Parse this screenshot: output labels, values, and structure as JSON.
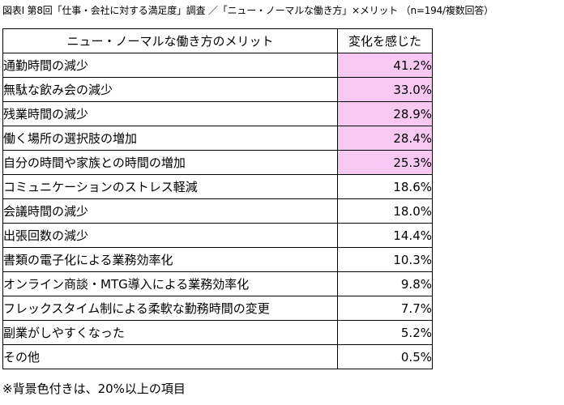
{
  "title": "図表Ⅰ 第8回「仕事・会社に対する満足度」調査 ／「ニュー・ノーマルな働き方」×メリット （n=194/複数回答）",
  "note": "※背景色付きは、20%以上の項目",
  "colors": {
    "highlight": "#f7c9f2",
    "border": "#000000"
  },
  "chart_data": {
    "type": "table",
    "columns": [
      "ニュー・ノーマルな働き方のメリット",
      "変化を感じた"
    ],
    "highlight_threshold_pct": 20,
    "rows": [
      {
        "label": "通勤時間の減少",
        "value": 41.2,
        "display": "41.2%",
        "highlight": true
      },
      {
        "label": "無駄な飲み会の減少",
        "value": 33.0,
        "display": "33.0%",
        "highlight": true
      },
      {
        "label": "残業時間の減少",
        "value": 28.9,
        "display": "28.9%",
        "highlight": true
      },
      {
        "label": "働く場所の選択肢の増加",
        "value": 28.4,
        "display": "28.4%",
        "highlight": true
      },
      {
        "label": "自分の時間や家族との時間の増加",
        "value": 25.3,
        "display": "25.3%",
        "highlight": true
      },
      {
        "label": "コミュニケーションのストレス軽減",
        "value": 18.6,
        "display": "18.6%",
        "highlight": false
      },
      {
        "label": "会議時間の減少",
        "value": 18.0,
        "display": "18.0%",
        "highlight": false
      },
      {
        "label": "出張回数の減少",
        "value": 14.4,
        "display": "14.4%",
        "highlight": false
      },
      {
        "label": "書類の電子化による業務効率化",
        "value": 10.3,
        "display": "10.3%",
        "highlight": false
      },
      {
        "label": "オンライン商談・MTG導入による業務効率化",
        "value": 9.8,
        "display": "9.8%",
        "highlight": false
      },
      {
        "label": "フレックスタイム制による柔軟な勤務時間の変更",
        "value": 7.7,
        "display": "7.7%",
        "highlight": false
      },
      {
        "label": "副業がしやすくなった",
        "value": 5.2,
        "display": "5.2%",
        "highlight": false
      },
      {
        "label": "その他",
        "value": 0.5,
        "display": "0.5%",
        "highlight": false
      }
    ]
  }
}
